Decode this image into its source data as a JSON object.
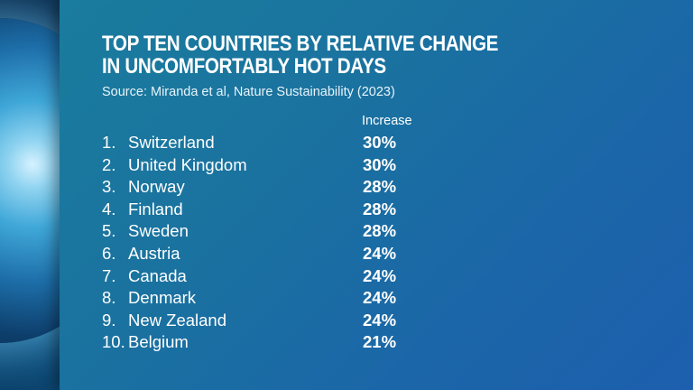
{
  "title": "TOP TEN COUNTRIES BY RELATIVE CHANGE IN UNCOMFORTABLY HOT DAYS",
  "source": "Source: Miranda et al, Nature Sustainability (2023)",
  "colors": {
    "panel": "#1a739f",
    "text": "#ffffff"
  },
  "chart_data": {
    "type": "table",
    "columns": [
      "",
      "",
      "Increase"
    ],
    "rows": [
      {
        "rank": "1.",
        "country": "Switzerland",
        "value": "30%"
      },
      {
        "rank": "2.",
        "country": "United Kingdom",
        "value": "30%"
      },
      {
        "rank": "3.",
        "country": "Norway",
        "value": "28%"
      },
      {
        "rank": "4.",
        "country": "Finland",
        "value": "28%"
      },
      {
        "rank": "5.",
        "country": "Sweden",
        "value": "28%"
      },
      {
        "rank": "6.",
        "country": "Austria",
        "value": "24%"
      },
      {
        "rank": "7.",
        "country": "Canada",
        "value": "24%"
      },
      {
        "rank": "8.",
        "country": "Denmark",
        "value": "24%"
      },
      {
        "rank": "9.",
        "country": "New Zealand",
        "value": "24%"
      },
      {
        "rank": "10.",
        "country": "Belgium",
        "value": "21%"
      }
    ]
  }
}
